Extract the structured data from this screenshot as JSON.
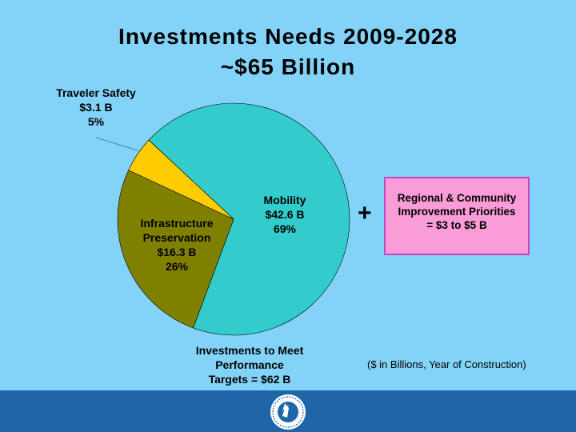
{
  "title": {
    "line1": "Investments Needs 2009-2028",
    "line2": "~$65 Billion"
  },
  "chart_data": {
    "type": "pie",
    "slices": [
      {
        "label": "Mobility",
        "amount": "$42.6 B",
        "percent": "69%",
        "value": 42.6,
        "color": "#33cccc"
      },
      {
        "label": "Infrastructure Preservation",
        "label_lines": [
          "Infrastructure",
          "Preservation"
        ],
        "amount": "$16.3 B",
        "percent": "26%",
        "value": 16.3,
        "color": "#808000"
      },
      {
        "label": "Traveler Safety",
        "amount": "$3.1 B",
        "percent": "5%",
        "value": 3.1,
        "color": "#ffcc00"
      }
    ],
    "caption": [
      "Investments to Meet",
      "Performance",
      "Targets = $62 B"
    ]
  },
  "plus_sign": "+",
  "addon_box": {
    "lines": [
      "Regional & Community",
      "Improvement Priorities",
      "= $3 to $5 B"
    ],
    "color": "#fa9cd7"
  },
  "note": "($ in Billions, Year of Construction)",
  "footer": {
    "color": "#1e66a8",
    "seal_icon": "state-transportation-seal-icon"
  }
}
